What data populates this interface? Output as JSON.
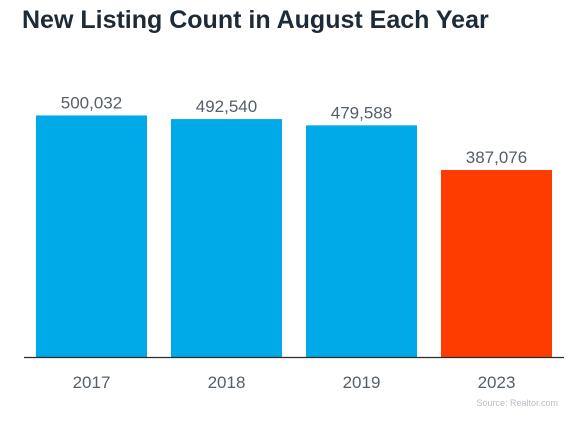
{
  "title": "New Listing Count in August Each Year",
  "source": "Source: Realtor.com",
  "chart_data": {
    "type": "bar",
    "title": "New Listing Count in August Each Year",
    "categories": [
      "2017",
      "2018",
      "2019",
      "2023"
    ],
    "values": [
      500032,
      492540,
      479588,
      387076
    ],
    "value_labels": [
      "500,032",
      "492,540",
      "479,588",
      "387,076"
    ],
    "colors": [
      "#00a9e8",
      "#00a9e8",
      "#00a9e8",
      "#ff3c00"
    ],
    "axis_color": "#2b2b2b",
    "ylim": [
      0,
      590000
    ],
    "grid": false,
    "legend": "none"
  }
}
